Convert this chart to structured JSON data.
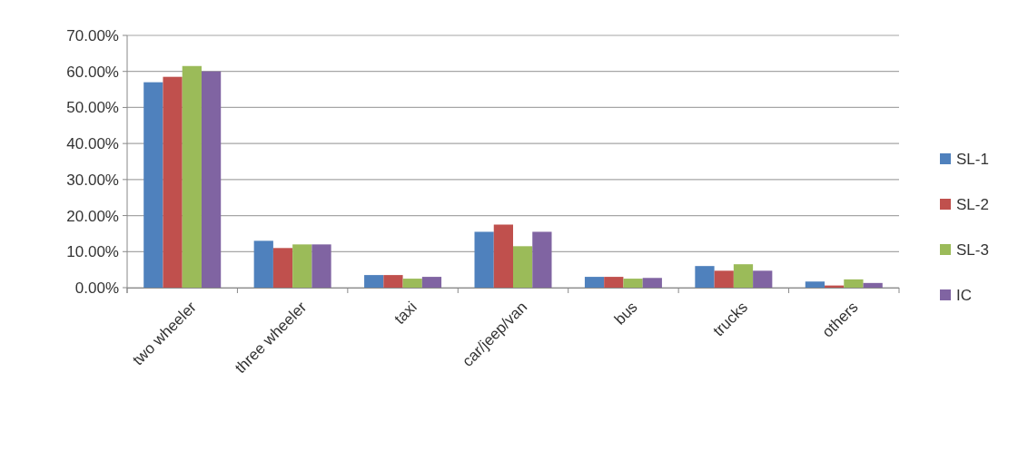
{
  "chart_data": {
    "type": "bar",
    "categories": [
      "two wheeler",
      "three wheeler",
      "taxi",
      "car/jeep/van",
      "bus",
      "trucks",
      "others"
    ],
    "series": [
      {
        "name": "SL-1",
        "color": "#4f81bd",
        "values": [
          57,
          13,
          3.5,
          15.5,
          3,
          6,
          1.7
        ]
      },
      {
        "name": "SL-2",
        "color": "#c0504d",
        "values": [
          58.5,
          11,
          3.5,
          17.5,
          3,
          4.7,
          0.6
        ]
      },
      {
        "name": "SL-3",
        "color": "#9bbb59",
        "values": [
          61.5,
          12,
          2.5,
          11.5,
          2.5,
          6.5,
          2.3
        ]
      },
      {
        "name": "IC",
        "color": "#8064a2",
        "values": [
          60,
          12,
          3,
          15.5,
          2.7,
          4.7,
          1.3
        ]
      }
    ],
    "ylim": [
      0,
      70
    ],
    "yticks": [
      {
        "value": 0,
        "label": "0.00%"
      },
      {
        "value": 10,
        "label": "10.00%"
      },
      {
        "value": 20,
        "label": "20.00%"
      },
      {
        "value": 30,
        "label": "30.00%"
      },
      {
        "value": 40,
        "label": "40.00%"
      },
      {
        "value": 50,
        "label": "50.00%"
      },
      {
        "value": 60,
        "label": "60.00%"
      },
      {
        "value": 70,
        "label": "70.00%"
      }
    ],
    "grid": "y",
    "legend": "right"
  }
}
